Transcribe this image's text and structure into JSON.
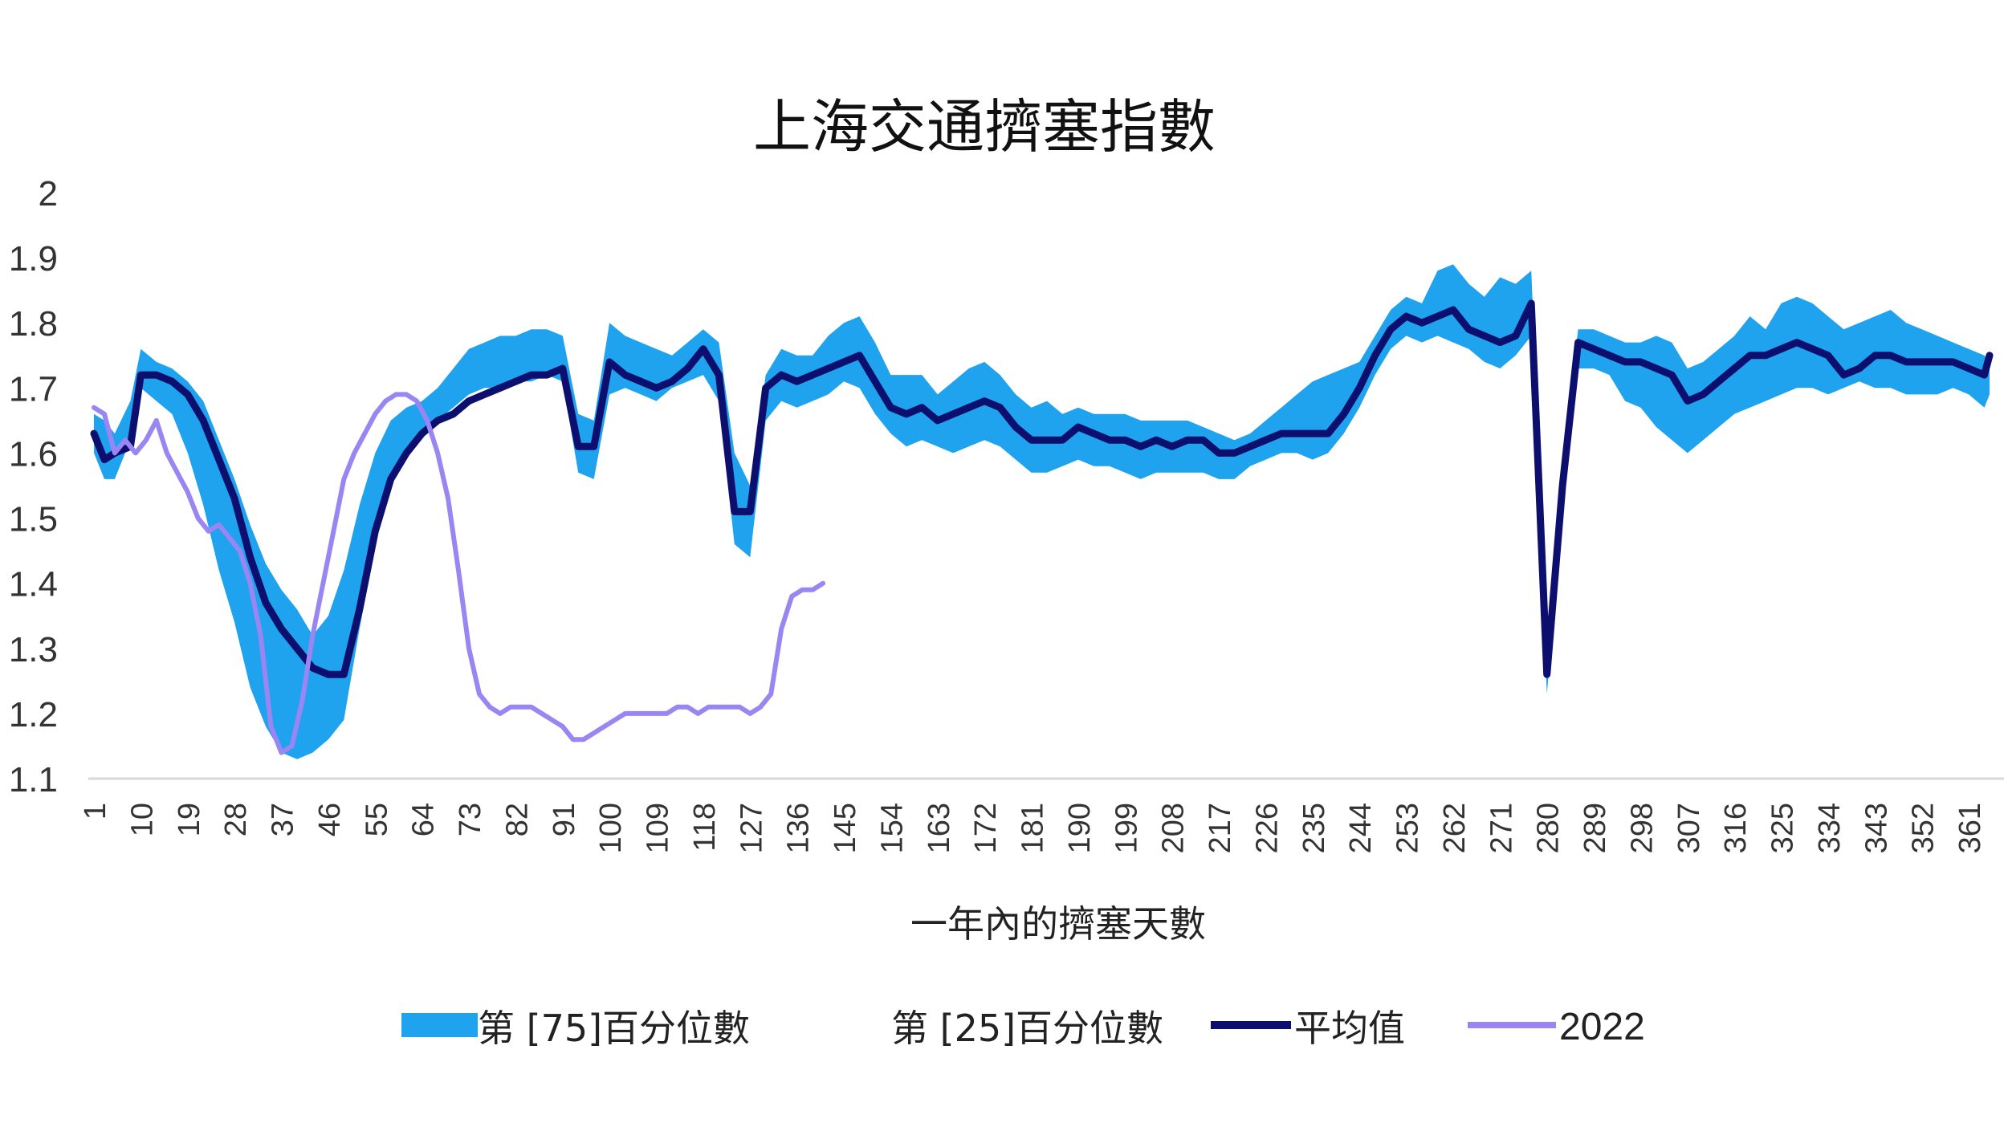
{
  "chart_data": {
    "type": "line",
    "title": "上海交通擠塞指數",
    "xlabel": "一年內的擠塞天數",
    "ylabel": "",
    "ylim": [
      1.1,
      2.0
    ],
    "xlim": [
      1,
      365
    ],
    "yticks": [
      "2",
      "1.9",
      "1.8",
      "1.7",
      "1.6",
      "1.5",
      "1.4",
      "1.3",
      "1.2",
      "1.1"
    ],
    "xticks": [
      "1",
      "10",
      "19",
      "28",
      "37",
      "46",
      "55",
      "64",
      "73",
      "82",
      "91",
      "100",
      "109",
      "118",
      "127",
      "136",
      "145",
      "154",
      "163",
      "172",
      "181",
      "190",
      "199",
      "208",
      "217",
      "226",
      "235",
      "244",
      "253",
      "262",
      "271",
      "280",
      "289",
      "298",
      "307",
      "316",
      "325",
      "334",
      "343",
      "352",
      "361"
    ],
    "grid": false,
    "legend_position": "bottom",
    "colors": {
      "band": "#1fa3ee",
      "mean": "#0d0f6e",
      "y2022": "#9a86f3",
      "axis": "#d9d9d9"
    },
    "legend": {
      "p75": "第 [75]百分位數",
      "p25": "第 [25]百分位數",
      "mean": "平均值",
      "y2022": "2022"
    },
    "series": [
      {
        "name": "第 [75]百分位數",
        "x": [
          1,
          3,
          5,
          8,
          10,
          13,
          16,
          19,
          22,
          25,
          28,
          31,
          34,
          37,
          40,
          43,
          46,
          49,
          52,
          55,
          58,
          61,
          64,
          67,
          70,
          73,
          76,
          79,
          82,
          85,
          88,
          91,
          94,
          97,
          100,
          103,
          106,
          109,
          112,
          115,
          118,
          121,
          124,
          127,
          130,
          133,
          136,
          139,
          142,
          145,
          148,
          151,
          154,
          157,
          160,
          163,
          166,
          169,
          172,
          175,
          178,
          181,
          184,
          187,
          190,
          193,
          196,
          199,
          202,
          205,
          208,
          211,
          214,
          217,
          220,
          223,
          226,
          229,
          232,
          235,
          238,
          241,
          244,
          247,
          250,
          253,
          256,
          259,
          262,
          265,
          268,
          271,
          274,
          277,
          280,
          283,
          286,
          289,
          292,
          295,
          298,
          301,
          304,
          307,
          310,
          313,
          316,
          319,
          322,
          325,
          328,
          331,
          334,
          337,
          340,
          343,
          346,
          349,
          352,
          355,
          358,
          361,
          364,
          365
        ],
        "values": [
          1.66,
          1.65,
          1.63,
          1.68,
          1.76,
          1.74,
          1.73,
          1.71,
          1.68,
          1.62,
          1.56,
          1.49,
          1.43,
          1.39,
          1.36,
          1.32,
          1.35,
          1.42,
          1.52,
          1.6,
          1.65,
          1.67,
          1.68,
          1.7,
          1.73,
          1.76,
          1.77,
          1.78,
          1.78,
          1.79,
          1.79,
          1.78,
          1.66,
          1.65,
          1.8,
          1.78,
          1.77,
          1.76,
          1.75,
          1.77,
          1.79,
          1.77,
          1.6,
          1.55,
          1.72,
          1.76,
          1.75,
          1.75,
          1.78,
          1.8,
          1.81,
          1.77,
          1.72,
          1.72,
          1.72,
          1.69,
          1.71,
          1.73,
          1.74,
          1.72,
          1.69,
          1.67,
          1.68,
          1.66,
          1.67,
          1.66,
          1.66,
          1.66,
          1.65,
          1.65,
          1.65,
          1.65,
          1.64,
          1.63,
          1.62,
          1.63,
          1.65,
          1.67,
          1.69,
          1.71,
          1.72,
          1.73,
          1.74,
          1.78,
          1.82,
          1.84,
          1.83,
          1.88,
          1.89,
          1.86,
          1.84,
          1.87,
          1.86,
          1.88,
          1.31,
          1.6,
          1.79,
          1.79,
          1.78,
          1.77,
          1.77,
          1.78,
          1.77,
          1.73,
          1.74,
          1.76,
          1.78,
          1.81,
          1.79,
          1.83,
          1.84,
          1.83,
          1.81,
          1.79,
          1.8,
          1.81,
          1.82,
          1.8,
          1.79,
          1.78,
          1.77,
          1.76,
          1.75,
          1.74
        ]
      },
      {
        "name": "第 [25]百分位數",
        "x": [
          1,
          3,
          5,
          8,
          10,
          13,
          16,
          19,
          22,
          25,
          28,
          31,
          34,
          37,
          40,
          43,
          46,
          49,
          52,
          55,
          58,
          61,
          64,
          67,
          70,
          73,
          76,
          79,
          82,
          85,
          88,
          91,
          94,
          97,
          100,
          103,
          106,
          109,
          112,
          115,
          118,
          121,
          124,
          127,
          130,
          133,
          136,
          139,
          142,
          145,
          148,
          151,
          154,
          157,
          160,
          163,
          166,
          169,
          172,
          175,
          178,
          181,
          184,
          187,
          190,
          193,
          196,
          199,
          202,
          205,
          208,
          211,
          214,
          217,
          220,
          223,
          226,
          229,
          232,
          235,
          238,
          241,
          244,
          247,
          250,
          253,
          256,
          259,
          262,
          265,
          268,
          271,
          274,
          277,
          280,
          283,
          286,
          289,
          292,
          295,
          298,
          301,
          304,
          307,
          310,
          313,
          316,
          319,
          322,
          325,
          328,
          331,
          334,
          337,
          340,
          343,
          346,
          349,
          352,
          355,
          358,
          361,
          364,
          365
        ],
        "values": [
          1.6,
          1.56,
          1.56,
          1.62,
          1.7,
          1.68,
          1.66,
          1.6,
          1.52,
          1.42,
          1.34,
          1.24,
          1.18,
          1.14,
          1.13,
          1.14,
          1.16,
          1.19,
          1.33,
          1.46,
          1.55,
          1.6,
          1.63,
          1.65,
          1.67,
          1.69,
          1.7,
          1.7,
          1.71,
          1.71,
          1.72,
          1.71,
          1.57,
          1.56,
          1.69,
          1.7,
          1.69,
          1.68,
          1.7,
          1.71,
          1.72,
          1.68,
          1.46,
          1.44,
          1.65,
          1.68,
          1.67,
          1.68,
          1.69,
          1.71,
          1.7,
          1.66,
          1.63,
          1.61,
          1.62,
          1.61,
          1.6,
          1.61,
          1.62,
          1.61,
          1.59,
          1.57,
          1.57,
          1.58,
          1.59,
          1.58,
          1.58,
          1.57,
          1.56,
          1.57,
          1.57,
          1.57,
          1.57,
          1.56,
          1.56,
          1.58,
          1.59,
          1.6,
          1.6,
          1.59,
          1.6,
          1.63,
          1.67,
          1.72,
          1.76,
          1.78,
          1.77,
          1.78,
          1.77,
          1.76,
          1.74,
          1.73,
          1.75,
          1.78,
          1.23,
          1.5,
          1.73,
          1.73,
          1.72,
          1.68,
          1.67,
          1.64,
          1.62,
          1.6,
          1.62,
          1.64,
          1.66,
          1.67,
          1.68,
          1.69,
          1.7,
          1.7,
          1.69,
          1.7,
          1.71,
          1.7,
          1.7,
          1.69,
          1.69,
          1.69,
          1.7,
          1.69,
          1.67,
          1.69
        ]
      },
      {
        "name": "平均值",
        "x": [
          1,
          3,
          5,
          8,
          10,
          13,
          16,
          19,
          22,
          25,
          28,
          31,
          34,
          37,
          40,
          43,
          46,
          49,
          52,
          55,
          58,
          61,
          64,
          67,
          70,
          73,
          76,
          79,
          82,
          85,
          88,
          91,
          94,
          97,
          100,
          103,
          106,
          109,
          112,
          115,
          118,
          121,
          124,
          127,
          130,
          133,
          136,
          139,
          142,
          145,
          148,
          151,
          154,
          157,
          160,
          163,
          166,
          169,
          172,
          175,
          178,
          181,
          184,
          187,
          190,
          193,
          196,
          199,
          202,
          205,
          208,
          211,
          214,
          217,
          220,
          223,
          226,
          229,
          232,
          235,
          238,
          241,
          244,
          247,
          250,
          253,
          256,
          259,
          262,
          265,
          268,
          271,
          274,
          277,
          280,
          283,
          286,
          289,
          292,
          295,
          298,
          301,
          304,
          307,
          310,
          313,
          316,
          319,
          322,
          325,
          328,
          331,
          334,
          337,
          340,
          343,
          346,
          349,
          352,
          355,
          358,
          361,
          364,
          365
        ],
        "values": [
          1.63,
          1.59,
          1.6,
          1.61,
          1.72,
          1.72,
          1.71,
          1.69,
          1.65,
          1.59,
          1.53,
          1.44,
          1.37,
          1.33,
          1.3,
          1.27,
          1.26,
          1.26,
          1.36,
          1.48,
          1.56,
          1.6,
          1.63,
          1.65,
          1.66,
          1.68,
          1.69,
          1.7,
          1.71,
          1.72,
          1.72,
          1.73,
          1.61,
          1.61,
          1.74,
          1.72,
          1.71,
          1.7,
          1.71,
          1.73,
          1.76,
          1.72,
          1.51,
          1.51,
          1.7,
          1.72,
          1.71,
          1.72,
          1.73,
          1.74,
          1.75,
          1.71,
          1.67,
          1.66,
          1.67,
          1.65,
          1.66,
          1.67,
          1.68,
          1.67,
          1.64,
          1.62,
          1.62,
          1.62,
          1.64,
          1.63,
          1.62,
          1.62,
          1.61,
          1.62,
          1.61,
          1.62,
          1.62,
          1.6,
          1.6,
          1.61,
          1.62,
          1.63,
          1.63,
          1.63,
          1.63,
          1.66,
          1.7,
          1.75,
          1.79,
          1.81,
          1.8,
          1.81,
          1.82,
          1.79,
          1.78,
          1.77,
          1.78,
          1.83,
          1.26,
          1.55,
          1.77,
          1.76,
          1.75,
          1.74,
          1.74,
          1.73,
          1.72,
          1.68,
          1.69,
          1.71,
          1.73,
          1.75,
          1.75,
          1.76,
          1.77,
          1.76,
          1.75,
          1.72,
          1.73,
          1.75,
          1.75,
          1.74,
          1.74,
          1.74,
          1.74,
          1.73,
          1.72,
          1.75
        ]
      },
      {
        "name": "2022",
        "x": [
          1,
          3,
          5,
          7,
          9,
          11,
          13,
          15,
          17,
          19,
          21,
          23,
          25,
          27,
          29,
          31,
          33,
          35,
          37,
          39,
          41,
          43,
          45,
          47,
          49,
          51,
          53,
          55,
          57,
          59,
          61,
          63,
          65,
          67,
          69,
          71,
          73,
          75,
          77,
          79,
          81,
          83,
          85,
          87,
          89,
          91,
          93,
          95,
          97,
          99,
          101,
          103,
          105,
          107,
          109,
          111,
          113,
          115,
          117,
          119,
          121,
          123,
          125,
          127,
          129,
          131,
          133,
          135,
          137,
          139,
          141
        ],
        "values": [
          1.67,
          1.66,
          1.6,
          1.62,
          1.6,
          1.62,
          1.65,
          1.6,
          1.57,
          1.54,
          1.5,
          1.48,
          1.49,
          1.47,
          1.45,
          1.4,
          1.32,
          1.18,
          1.14,
          1.15,
          1.22,
          1.32,
          1.4,
          1.48,
          1.56,
          1.6,
          1.63,
          1.66,
          1.68,
          1.69,
          1.69,
          1.68,
          1.65,
          1.6,
          1.53,
          1.42,
          1.3,
          1.23,
          1.21,
          1.2,
          1.21,
          1.21,
          1.21,
          1.2,
          1.19,
          1.18,
          1.16,
          1.16,
          1.17,
          1.18,
          1.19,
          1.2,
          1.2,
          1.2,
          1.2,
          1.2,
          1.21,
          1.21,
          1.2,
          1.21,
          1.21,
          1.21,
          1.21,
          1.2,
          1.21,
          1.23,
          1.33,
          1.38,
          1.39,
          1.39,
          1.4
        ]
      }
    ]
  }
}
